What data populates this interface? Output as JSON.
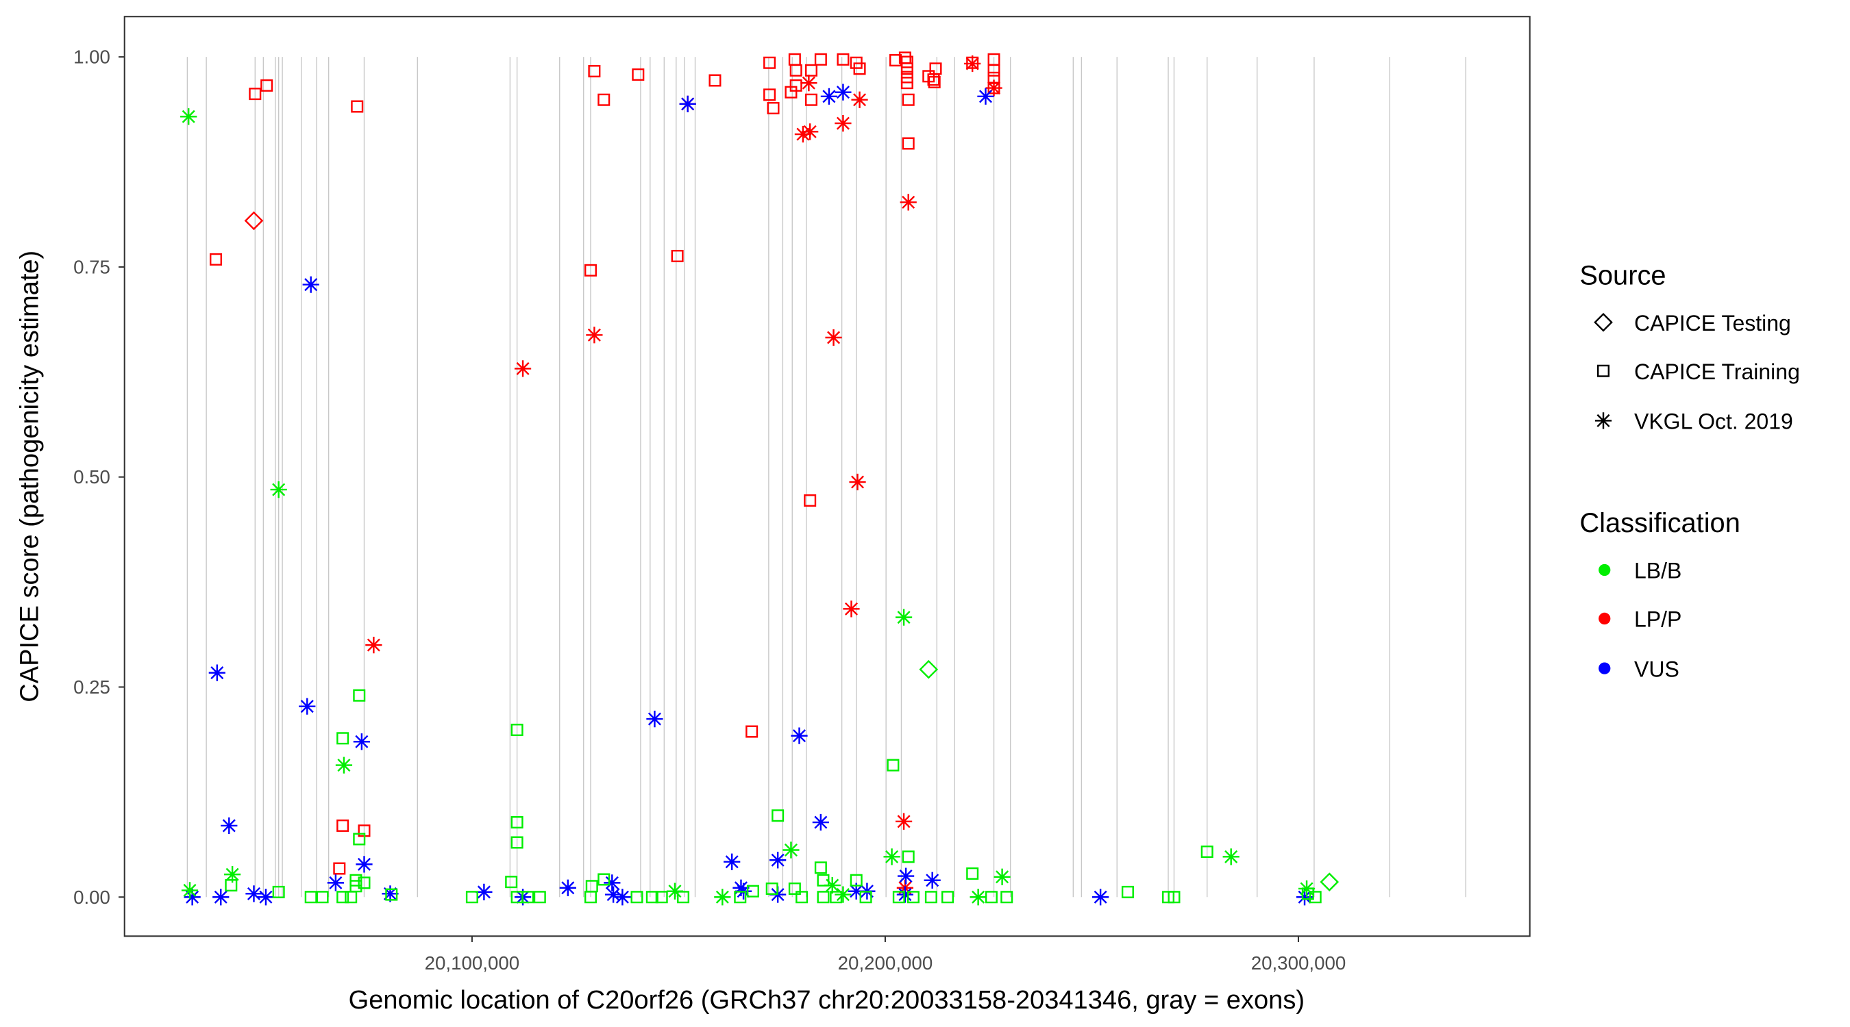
{
  "chart_data": {
    "type": "scatter",
    "xlabel": "Genomic location of C20orf26 (GRCh37 chr20:20033158-20341346, gray = exons)",
    "ylabel": "CAPICE score (pathogenicity estimate)",
    "xlim": [
      20015900,
      20356000
    ],
    "ylim": [
      -0.0465,
      1.048
    ],
    "grid": false,
    "x_ticks": [
      {
        "value": 20100000,
        "label": "20,100,000"
      },
      {
        "value": 20200000,
        "label": "20,200,000"
      },
      {
        "value": 20300000,
        "label": "20,300,000"
      }
    ],
    "y_ticks": [
      {
        "value": 0,
        "label": "0.00"
      },
      {
        "value": 0.25,
        "label": "0.25"
      },
      {
        "value": 0.5,
        "label": "0.50"
      },
      {
        "value": 0.75,
        "label": "0.75"
      },
      {
        "value": 1,
        "label": "1.00"
      }
    ],
    "exons": [
      20031100,
      20035700,
      20047500,
      20049500,
      20052400,
      20053200,
      20054100,
      20058700,
      20062400,
      20065300,
      20073900,
      20086800,
      20109200,
      20110900,
      20121200,
      20127000,
      20128700,
      20140800,
      20143100,
      20146500,
      20149400,
      20151400,
      20154000,
      20171800,
      20175200,
      20177500,
      20180900,
      20189500,
      20193000,
      20200200,
      20203900,
      20212500,
      20216800,
      20226300,
      20230300,
      20245500,
      20247500,
      20256100,
      20268500,
      20269900,
      20277900,
      20290000,
      20303800,
      20322100,
      20340500
    ],
    "legend": {
      "placement": "right",
      "source_title": "Source",
      "sources": [
        "CAPICE Testing",
        "CAPICE Training",
        "VKGL Oct. 2019"
      ],
      "source_shapes": [
        "diamond",
        "square",
        "asterisk"
      ],
      "class_title": "Classification",
      "classes": [
        "LB/B",
        "LP/P",
        "VUS"
      ],
      "class_colors": [
        "#00ee00",
        "#ff0000",
        "#0000ff"
      ]
    },
    "point_fields": [
      "position",
      "score",
      "source_index",
      "class_index"
    ],
    "points": [
      [
        20047500,
        0.956,
        1,
        1
      ],
      [
        20050300,
        0.966,
        1,
        1
      ],
      [
        20072200,
        0.941,
        1,
        1
      ],
      [
        20038000,
        0.759,
        1,
        1
      ],
      [
        20068700,
        0.085,
        1,
        1
      ],
      [
        20067900,
        0.034,
        1,
        1
      ],
      [
        20073900,
        0.079,
        1,
        1
      ],
      [
        20129600,
        0.983,
        1,
        1
      ],
      [
        20131900,
        0.949,
        1,
        1
      ],
      [
        20140200,
        0.979,
        1,
        1
      ],
      [
        20128700,
        0.746,
        1,
        1
      ],
      [
        20149700,
        0.763,
        1,
        1
      ],
      [
        20158800,
        0.972,
        1,
        1
      ],
      [
        20172000,
        0.993,
        1,
        1
      ],
      [
        20172000,
        0.955,
        1,
        1
      ],
      [
        20172900,
        0.939,
        1,
        1
      ],
      [
        20177200,
        0.958,
        1,
        1
      ],
      [
        20178100,
        0.997,
        1,
        1
      ],
      [
        20178400,
        0.984,
        1,
        1
      ],
      [
        20178400,
        0.966,
        1,
        1
      ],
      [
        20182100,
        0.984,
        1,
        1
      ],
      [
        20182100,
        0.949,
        1,
        1
      ],
      [
        20184400,
        0.997,
        1,
        1
      ],
      [
        20189800,
        0.997,
        1,
        1
      ],
      [
        20193000,
        0.993,
        1,
        1
      ],
      [
        20193800,
        0.986,
        1,
        1
      ],
      [
        20202500,
        0.996,
        1,
        1
      ],
      [
        20204800,
        0.999,
        1,
        1
      ],
      [
        20205300,
        0.994,
        1,
        1
      ],
      [
        20205300,
        0.986,
        1,
        1
      ],
      [
        20205300,
        0.976,
        1,
        1
      ],
      [
        20205300,
        0.969,
        1,
        1
      ],
      [
        20205600,
        0.949,
        1,
        1
      ],
      [
        20205600,
        0.897,
        1,
        1
      ],
      [
        20210500,
        0.977,
        1,
        1
      ],
      [
        20211700,
        0.973,
        1,
        1
      ],
      [
        20212200,
        0.986,
        1,
        1
      ],
      [
        20211900,
        0.97,
        1,
        1
      ],
      [
        20221100,
        0.993,
        1,
        1
      ],
      [
        20226300,
        0.997,
        1,
        1
      ],
      [
        20226300,
        0.984,
        1,
        1
      ],
      [
        20226300,
        0.975,
        1,
        1
      ],
      [
        20226300,
        0.963,
        1,
        1
      ],
      [
        20181800,
        0.472,
        1,
        1
      ],
      [
        20167700,
        0.197,
        1,
        1
      ],
      [
        20047200,
        0.805,
        0,
        1
      ],
      [
        20076200,
        0.3,
        2,
        1
      ],
      [
        20112300,
        0.629,
        2,
        1
      ],
      [
        20129600,
        0.669,
        2,
        1
      ],
      [
        20152200,
        0.944,
        2,
        1
      ],
      [
        20181500,
        0.969,
        2,
        1
      ],
      [
        20180100,
        0.908,
        2,
        1
      ],
      [
        20181800,
        0.911,
        2,
        1
      ],
      [
        20189800,
        0.921,
        2,
        1
      ],
      [
        20193800,
        0.949,
        2,
        1
      ],
      [
        20205600,
        0.827,
        2,
        1
      ],
      [
        20221100,
        0.992,
        2,
        1
      ],
      [
        20226300,
        0.963,
        2,
        1
      ],
      [
        20187500,
        0.666,
        2,
        1
      ],
      [
        20193300,
        0.494,
        2,
        1
      ],
      [
        20191800,
        0.343,
        2,
        1
      ],
      [
        20204500,
        0.09,
        2,
        1
      ],
      [
        20204800,
        0.011,
        2,
        1
      ],
      [
        20032300,
        0,
        2,
        2
      ],
      [
        20039200,
        0,
        2,
        2
      ],
      [
        20047200,
        0.004,
        2,
        2
      ],
      [
        20050100,
        0,
        2,
        2
      ],
      [
        20038300,
        0.267,
        2,
        2
      ],
      [
        20041200,
        0.085,
        2,
        2
      ],
      [
        20060100,
        0.227,
        2,
        2
      ],
      [
        20061000,
        0.729,
        2,
        2
      ],
      [
        20067000,
        0.017,
        2,
        2
      ],
      [
        20073300,
        0.185,
        2,
        2
      ],
      [
        20073900,
        0.039,
        2,
        2
      ],
      [
        20080200,
        0.004,
        2,
        2
      ],
      [
        20102900,
        0.006,
        2,
        2
      ],
      [
        20112300,
        0,
        2,
        2
      ],
      [
        20123200,
        0.011,
        2,
        2
      ],
      [
        20133900,
        0.017,
        2,
        2
      ],
      [
        20134200,
        0.003,
        2,
        2
      ],
      [
        20136400,
        0,
        2,
        2
      ],
      [
        20144200,
        0.212,
        2,
        2
      ],
      [
        20152200,
        0.944,
        2,
        2
      ],
      [
        20162900,
        0.042,
        2,
        2
      ],
      [
        20165100,
        0.011,
        2,
        2
      ],
      [
        20165700,
        0.007,
        2,
        2
      ],
      [
        20174000,
        0.044,
        2,
        2
      ],
      [
        20174000,
        0.003,
        2,
        2
      ],
      [
        20179200,
        0.192,
        2,
        2
      ],
      [
        20184400,
        0.089,
        2,
        2
      ],
      [
        20186400,
        0.953,
        2,
        2
      ],
      [
        20189800,
        0.958,
        2,
        2
      ],
      [
        20193000,
        0.007,
        2,
        2
      ],
      [
        20195600,
        0.007,
        2,
        2
      ],
      [
        20205000,
        0.025,
        2,
        2
      ],
      [
        20204800,
        0.003,
        2,
        2
      ],
      [
        20211400,
        0.02,
        2,
        2
      ],
      [
        20224300,
        0.953,
        2,
        2
      ],
      [
        20252100,
        0,
        2,
        2
      ],
      [
        20301500,
        0,
        2,
        2
      ],
      [
        20031400,
        0.929,
        2,
        0
      ],
      [
        20053200,
        0.485,
        2,
        0
      ],
      [
        20069000,
        0.157,
        2,
        0
      ],
      [
        20042000,
        0.027,
        2,
        0
      ],
      [
        20031700,
        0.008,
        2,
        0
      ],
      [
        20149100,
        0.007,
        2,
        0
      ],
      [
        20160600,
        0,
        2,
        0
      ],
      [
        20177200,
        0.056,
        2,
        0
      ],
      [
        20187200,
        0.014,
        2,
        0
      ],
      [
        20201600,
        0.048,
        2,
        0
      ],
      [
        20204500,
        0.333,
        2,
        0
      ],
      [
        20228300,
        0.024,
        2,
        0
      ],
      [
        20283700,
        0.048,
        2,
        0
      ],
      [
        20302000,
        0.01,
        2,
        0
      ],
      [
        20189800,
        0.003,
        2,
        0
      ],
      [
        20222500,
        0,
        2,
        0
      ],
      [
        20041700,
        0.014,
        1,
        0
      ],
      [
        20053200,
        0.006,
        1,
        0
      ],
      [
        20061000,
        0,
        1,
        0
      ],
      [
        20063800,
        0,
        1,
        0
      ],
      [
        20068700,
        0.189,
        1,
        0
      ],
      [
        20068700,
        0,
        1,
        0
      ],
      [
        20070700,
        0,
        1,
        0
      ],
      [
        20071900,
        0.013,
        1,
        0
      ],
      [
        20072700,
        0.24,
        1,
        0
      ],
      [
        20072700,
        0.069,
        1,
        0
      ],
      [
        20073900,
        0.017,
        1,
        0
      ],
      [
        20071900,
        0.02,
        1,
        0
      ],
      [
        20080500,
        0.003,
        1,
        0
      ],
      [
        20100000,
        0,
        1,
        0
      ],
      [
        20109500,
        0.018,
        1,
        0
      ],
      [
        20110900,
        0.199,
        1,
        0
      ],
      [
        20110900,
        0.089,
        1,
        0
      ],
      [
        20110900,
        0.065,
        1,
        0
      ],
      [
        20110900,
        0,
        1,
        0
      ],
      [
        20113500,
        0,
        1,
        0
      ],
      [
        20116400,
        0,
        1,
        0
      ],
      [
        20128700,
        0,
        1,
        0
      ],
      [
        20129000,
        0.013,
        1,
        0
      ],
      [
        20131900,
        0.021,
        1,
        0
      ],
      [
        20139900,
        0,
        1,
        0
      ],
      [
        20143600,
        0,
        1,
        0
      ],
      [
        20145900,
        0,
        1,
        0
      ],
      [
        20151100,
        0,
        1,
        0
      ],
      [
        20164900,
        0,
        1,
        0
      ],
      [
        20168000,
        0.007,
        1,
        0
      ],
      [
        20172600,
        0.01,
        1,
        0
      ],
      [
        20174000,
        0.097,
        1,
        0
      ],
      [
        20178100,
        0.01,
        1,
        0
      ],
      [
        20179800,
        0,
        1,
        0
      ],
      [
        20184400,
        0.035,
        1,
        0
      ],
      [
        20185000,
        0.02,
        1,
        0
      ],
      [
        20185000,
        0,
        1,
        0
      ],
      [
        20188100,
        0,
        1,
        0
      ],
      [
        20193000,
        0.02,
        1,
        0
      ],
      [
        20195300,
        0,
        1,
        0
      ],
      [
        20201900,
        0.157,
        1,
        0
      ],
      [
        20203300,
        0,
        1,
        0
      ],
      [
        20205600,
        0.048,
        1,
        0
      ],
      [
        20206800,
        0,
        1,
        0
      ],
      [
        20211100,
        0,
        1,
        0
      ],
      [
        20215100,
        0,
        1,
        0
      ],
      [
        20221100,
        0.028,
        1,
        0
      ],
      [
        20225700,
        0,
        1,
        0
      ],
      [
        20229400,
        0,
        1,
        0
      ],
      [
        20258700,
        0.006,
        1,
        0
      ],
      [
        20268500,
        0,
        1,
        0
      ],
      [
        20269900,
        0,
        1,
        0
      ],
      [
        20277900,
        0.054,
        1,
        0
      ],
      [
        20302300,
        0.004,
        1,
        0
      ],
      [
        20304100,
        0,
        1,
        0
      ],
      [
        20210500,
        0.271,
        0,
        0
      ],
      [
        20307500,
        0.018,
        0,
        0
      ]
    ]
  }
}
